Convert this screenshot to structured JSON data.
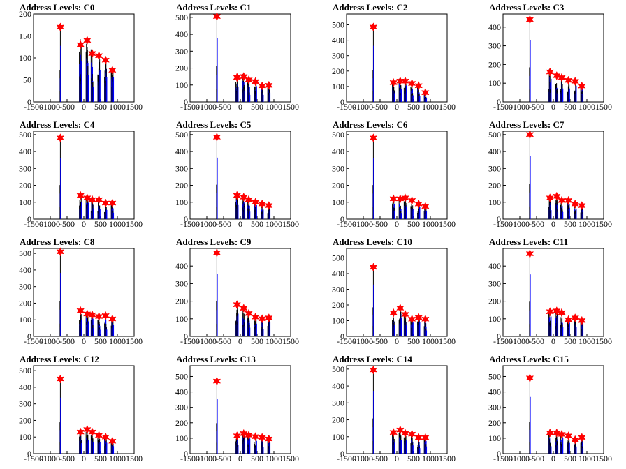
{
  "chart_data": [
    {
      "type": "histogram",
      "title": "Address Levels: C0",
      "xlim": [
        -1500,
        1500
      ],
      "ylim": [
        0,
        200
      ],
      "yticks": [
        0,
        50,
        100,
        150,
        200
      ],
      "xticks": [
        -1500,
        -1000,
        -500,
        0,
        500,
        1000,
        1500
      ],
      "peaks": [
        {
          "x": -700,
          "y": 170
        },
        {
          "x": -100,
          "y": 130
        },
        {
          "x": 100,
          "y": 140
        },
        {
          "x": 250,
          "y": 110
        },
        {
          "x": 450,
          "y": 105
        },
        {
          "x": 650,
          "y": 95
        },
        {
          "x": 850,
          "y": 72
        }
      ]
    },
    {
      "type": "histogram",
      "title": "Address Levels: C1",
      "xlim": [
        -1500,
        1500
      ],
      "ylim": [
        0,
        520
      ],
      "yticks": [
        0,
        100,
        200,
        300,
        400,
        500
      ],
      "xticks": [
        -1500,
        -1000,
        -500,
        0,
        500,
        1000,
        1500
      ],
      "peaks": [
        {
          "x": -700,
          "y": 505
        },
        {
          "x": -100,
          "y": 145
        },
        {
          "x": 100,
          "y": 150
        },
        {
          "x": 250,
          "y": 130
        },
        {
          "x": 450,
          "y": 120
        },
        {
          "x": 650,
          "y": 95
        },
        {
          "x": 850,
          "y": 98
        }
      ]
    },
    {
      "type": "histogram",
      "title": "Address Levels: C2",
      "xlim": [
        -1500,
        1500
      ],
      "ylim": [
        0,
        570
      ],
      "yticks": [
        0,
        100,
        200,
        300,
        400,
        500
      ],
      "xticks": [
        -1500,
        -1000,
        -500,
        0,
        500,
        1000,
        1500
      ],
      "peaks": [
        {
          "x": -700,
          "y": 485
        },
        {
          "x": -100,
          "y": 125
        },
        {
          "x": 100,
          "y": 135
        },
        {
          "x": 250,
          "y": 135
        },
        {
          "x": 450,
          "y": 120
        },
        {
          "x": 650,
          "y": 105
        },
        {
          "x": 850,
          "y": 60
        }
      ]
    },
    {
      "type": "histogram",
      "title": "Address Levels: C3",
      "xlim": [
        -1500,
        1500
      ],
      "ylim": [
        0,
        470
      ],
      "yticks": [
        0,
        100,
        200,
        300,
        400
      ],
      "xticks": [
        -1500,
        -1000,
        -500,
        0,
        500,
        1000,
        1500
      ],
      "peaks": [
        {
          "x": -700,
          "y": 440
        },
        {
          "x": -100,
          "y": 160
        },
        {
          "x": 100,
          "y": 140
        },
        {
          "x": 250,
          "y": 130
        },
        {
          "x": 450,
          "y": 115
        },
        {
          "x": 650,
          "y": 110
        },
        {
          "x": 850,
          "y": 85
        }
      ]
    },
    {
      "type": "histogram",
      "title": "Address Levels: C4",
      "xlim": [
        -1500,
        1500
      ],
      "ylim": [
        0,
        520
      ],
      "yticks": [
        0,
        100,
        200,
        300,
        400,
        500
      ],
      "xticks": [
        -1500,
        -1000,
        -500,
        0,
        500,
        1000,
        1500
      ],
      "peaks": [
        {
          "x": -700,
          "y": 480
        },
        {
          "x": -100,
          "y": 140
        },
        {
          "x": 100,
          "y": 125
        },
        {
          "x": 250,
          "y": 115
        },
        {
          "x": 450,
          "y": 115
        },
        {
          "x": 650,
          "y": 95
        },
        {
          "x": 850,
          "y": 95
        }
      ]
    },
    {
      "type": "histogram",
      "title": "Address Levels: C5",
      "xlim": [
        -1500,
        1500
      ],
      "ylim": [
        0,
        520
      ],
      "yticks": [
        0,
        100,
        200,
        300,
        400,
        500
      ],
      "xticks": [
        -1500,
        -1000,
        -500,
        0,
        500,
        1000,
        1500
      ],
      "peaks": [
        {
          "x": -700,
          "y": 485
        },
        {
          "x": -100,
          "y": 140
        },
        {
          "x": 100,
          "y": 130
        },
        {
          "x": 250,
          "y": 115
        },
        {
          "x": 450,
          "y": 100
        },
        {
          "x": 650,
          "y": 90
        },
        {
          "x": 850,
          "y": 80
        }
      ]
    },
    {
      "type": "histogram",
      "title": "Address Levels: C6",
      "xlim": [
        -1500,
        1500
      ],
      "ylim": [
        0,
        520
      ],
      "yticks": [
        0,
        100,
        200,
        300,
        400,
        500
      ],
      "xticks": [
        -1500,
        -1000,
        -500,
        0,
        500,
        1000,
        1500
      ],
      "peaks": [
        {
          "x": -700,
          "y": 480
        },
        {
          "x": -100,
          "y": 120
        },
        {
          "x": 100,
          "y": 120
        },
        {
          "x": 250,
          "y": 125
        },
        {
          "x": 450,
          "y": 110
        },
        {
          "x": 650,
          "y": 90
        },
        {
          "x": 850,
          "y": 75
        }
      ]
    },
    {
      "type": "histogram",
      "title": "Address Levels: C7",
      "xlim": [
        -1500,
        1500
      ],
      "ylim": [
        0,
        520
      ],
      "yticks": [
        0,
        100,
        200,
        300,
        400,
        500
      ],
      "xticks": [
        -1500,
        -1000,
        -500,
        0,
        500,
        1000,
        1500
      ],
      "peaks": [
        {
          "x": -700,
          "y": 500
        },
        {
          "x": -100,
          "y": 125
        },
        {
          "x": 100,
          "y": 135
        },
        {
          "x": 250,
          "y": 110
        },
        {
          "x": 450,
          "y": 110
        },
        {
          "x": 650,
          "y": 90
        },
        {
          "x": 850,
          "y": 80
        }
      ]
    },
    {
      "type": "histogram",
      "title": "Address Levels: C8",
      "xlim": [
        -1500,
        1500
      ],
      "ylim": [
        0,
        530
      ],
      "yticks": [
        0,
        100,
        200,
        300,
        400,
        500
      ],
      "xticks": [
        -1500,
        -1000,
        -500,
        0,
        500,
        1000,
        1500
      ],
      "peaks": [
        {
          "x": -700,
          "y": 510
        },
        {
          "x": -100,
          "y": 155
        },
        {
          "x": 100,
          "y": 135
        },
        {
          "x": 250,
          "y": 130
        },
        {
          "x": 450,
          "y": 120
        },
        {
          "x": 650,
          "y": 125
        },
        {
          "x": 850,
          "y": 105
        }
      ]
    },
    {
      "type": "histogram",
      "title": "Address Levels: C9",
      "xlim": [
        -1500,
        1500
      ],
      "ylim": [
        0,
        500
      ],
      "yticks": [
        0,
        100,
        200,
        300,
        400
      ],
      "xticks": [
        -1500,
        -1000,
        -500,
        0,
        500,
        1000,
        1500
      ],
      "peaks": [
        {
          "x": -700,
          "y": 475
        },
        {
          "x": -100,
          "y": 180
        },
        {
          "x": 100,
          "y": 160
        },
        {
          "x": 250,
          "y": 130
        },
        {
          "x": 450,
          "y": 110
        },
        {
          "x": 650,
          "y": 100
        },
        {
          "x": 850,
          "y": 105
        }
      ]
    },
    {
      "type": "histogram",
      "title": "Address Levels: C10",
      "xlim": [
        -1500,
        1500
      ],
      "ylim": [
        0,
        560
      ],
      "yticks": [
        0,
        100,
        200,
        300,
        400,
        500
      ],
      "xticks": [
        -1500,
        -1000,
        -500,
        0,
        500,
        1000,
        1500
      ],
      "peaks": [
        {
          "x": -700,
          "y": 440
        },
        {
          "x": -100,
          "y": 150
        },
        {
          "x": 100,
          "y": 180
        },
        {
          "x": 250,
          "y": 140
        },
        {
          "x": 450,
          "y": 110
        },
        {
          "x": 650,
          "y": 120
        },
        {
          "x": 850,
          "y": 110
        }
      ]
    },
    {
      "type": "histogram",
      "title": "Address Levels: C11",
      "xlim": [
        -1500,
        1500
      ],
      "ylim": [
        0,
        500
      ],
      "yticks": [
        0,
        100,
        200,
        300,
        400
      ],
      "xticks": [
        -1500,
        -1000,
        -500,
        0,
        500,
        1000,
        1500
      ],
      "peaks": [
        {
          "x": -700,
          "y": 470
        },
        {
          "x": -100,
          "y": 140
        },
        {
          "x": 100,
          "y": 145
        },
        {
          "x": 250,
          "y": 135
        },
        {
          "x": 450,
          "y": 95
        },
        {
          "x": 650,
          "y": 105
        },
        {
          "x": 850,
          "y": 90
        }
      ]
    },
    {
      "type": "histogram",
      "title": "Address Levels: C12",
      "xlim": [
        -1500,
        1500
      ],
      "ylim": [
        0,
        530
      ],
      "yticks": [
        0,
        100,
        200,
        300,
        400,
        500
      ],
      "xticks": [
        -1500,
        -1000,
        -500,
        0,
        500,
        1000,
        1500
      ],
      "peaks": [
        {
          "x": -700,
          "y": 450
        },
        {
          "x": -100,
          "y": 130
        },
        {
          "x": 100,
          "y": 145
        },
        {
          "x": 250,
          "y": 130
        },
        {
          "x": 450,
          "y": 110
        },
        {
          "x": 650,
          "y": 100
        },
        {
          "x": 850,
          "y": 75
        }
      ]
    },
    {
      "type": "histogram",
      "title": "Address Levels: C13",
      "xlim": [
        -1500,
        1500
      ],
      "ylim": [
        0,
        570
      ],
      "yticks": [
        0,
        100,
        200,
        300,
        400,
        500
      ],
      "xticks": [
        -1500,
        -1000,
        -500,
        0,
        500,
        1000,
        1500
      ],
      "peaks": [
        {
          "x": -700,
          "y": 470
        },
        {
          "x": -100,
          "y": 115
        },
        {
          "x": 100,
          "y": 130
        },
        {
          "x": 250,
          "y": 120
        },
        {
          "x": 450,
          "y": 110
        },
        {
          "x": 650,
          "y": 105
        },
        {
          "x": 850,
          "y": 95
        }
      ]
    },
    {
      "type": "histogram",
      "title": "Address Levels: C14",
      "xlim": [
        -1500,
        1500
      ],
      "ylim": [
        0,
        520
      ],
      "yticks": [
        0,
        100,
        200,
        300,
        400,
        500
      ],
      "xticks": [
        -1500,
        -1000,
        -500,
        0,
        500,
        1000,
        1500
      ],
      "peaks": [
        {
          "x": -700,
          "y": 495
        },
        {
          "x": -100,
          "y": 125
        },
        {
          "x": 100,
          "y": 140
        },
        {
          "x": 250,
          "y": 120
        },
        {
          "x": 450,
          "y": 115
        },
        {
          "x": 650,
          "y": 95
        },
        {
          "x": 850,
          "y": 95
        }
      ]
    },
    {
      "type": "histogram",
      "title": "Address Levels: C15",
      "xlim": [
        -1500,
        1500
      ],
      "ylim": [
        0,
        570
      ],
      "yticks": [
        0,
        100,
        200,
        300,
        400,
        500
      ],
      "xticks": [
        -1500,
        -1000,
        -500,
        0,
        500,
        1000,
        1500
      ],
      "peaks": [
        {
          "x": -700,
          "y": 490
        },
        {
          "x": -100,
          "y": 135
        },
        {
          "x": 100,
          "y": 135
        },
        {
          "x": 250,
          "y": 125
        },
        {
          "x": 450,
          "y": 115
        },
        {
          "x": 650,
          "y": 90
        },
        {
          "x": 850,
          "y": 105
        }
      ]
    }
  ],
  "colors": {
    "bars": "#0000ff",
    "outline": "#000000",
    "marker": "#ff0000"
  }
}
